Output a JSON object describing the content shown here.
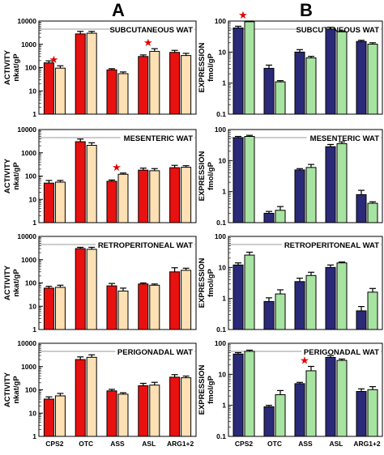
{
  "figure": {
    "letters": [
      "A",
      "B"
    ]
  },
  "chart_data": [
    {
      "type": "bar",
      "panel": "A",
      "title": "SUBCUTANEOUS WAT",
      "ylabel": [
        "ACTIVITY",
        "nkat/gP"
      ],
      "yscale": "log",
      "ylim": [
        1,
        10000
      ],
      "yticks": [
        "1",
        "10",
        "100",
        "1000",
        "10000"
      ],
      "categories": [
        "CPS2",
        "OTC",
        "ASS",
        "ASL",
        "ARG1+2"
      ],
      "series": [
        {
          "color": "#e8110f",
          "values": [
            160,
            2800,
            80,
            300,
            450
          ],
          "errors": [
            35,
            800,
            10,
            50,
            100
          ]
        },
        {
          "color": "#fde0b3",
          "values": [
            95,
            3000,
            55,
            500,
            330
          ],
          "errors": [
            25,
            600,
            10,
            150,
            80
          ]
        }
      ],
      "stars": [
        [
          0,
          1
        ],
        [
          3,
          1
        ]
      ]
    },
    {
      "type": "bar",
      "panel": "B",
      "title": "SUBCUTANEOUS WAT",
      "ylabel": [
        "EXPRESSION",
        "fmol/gP"
      ],
      "yscale": "log",
      "ylim": [
        0.1,
        100
      ],
      "yticks": [
        "0.1",
        "1",
        "10",
        "100"
      ],
      "categories": [
        "CPS2",
        "OTC",
        "ASS",
        "ASL",
        "ARG1+2"
      ],
      "series": [
        {
          "color": "#2b2a78",
          "values": [
            60,
            3,
            10,
            55,
            22
          ],
          "errors": [
            8,
            0.8,
            2,
            8,
            2
          ]
        },
        {
          "color": "#a7e3a1",
          "values": [
            95,
            1.1,
            6.5,
            45,
            18
          ],
          "errors": [
            5,
            0.1,
            0.8,
            3,
            2
          ]
        }
      ],
      "stars": [
        [
          0,
          1
        ]
      ]
    },
    {
      "type": "bar",
      "panel": "A",
      "title": "MESENTERIC WAT",
      "ylabel": [
        "ACTIVITY",
        "nkat/gP"
      ],
      "yscale": "log",
      "ylim": [
        1,
        10000
      ],
      "yticks": [
        "1",
        "10",
        "100",
        "1000",
        "10000"
      ],
      "categories": [
        "CPS2",
        "OTC",
        "ASS",
        "ASL",
        "ARG1+2"
      ],
      "series": [
        {
          "color": "#e8110f",
          "values": [
            50,
            3000,
            60,
            180,
            230
          ],
          "errors": [
            15,
            900,
            8,
            40,
            60
          ]
        },
        {
          "color": "#fde0b3",
          "values": [
            55,
            2100,
            120,
            170,
            240
          ],
          "errors": [
            10,
            600,
            15,
            40,
            40
          ]
        }
      ],
      "stars": [
        [
          2,
          1
        ]
      ]
    },
    {
      "type": "bar",
      "panel": "B",
      "title": "MESENTERIC WAT",
      "ylabel": [
        "EXPRESSION",
        "fmol/gP"
      ],
      "yscale": "log",
      "ylim": [
        0.1,
        100
      ],
      "yticks": [
        "0.1",
        "1",
        "10",
        "100"
      ],
      "categories": [
        "CPS2",
        "OTC",
        "ASS",
        "ASL",
        "ARG1+2"
      ],
      "series": [
        {
          "color": "#2b2a78",
          "values": [
            55,
            0.2,
            5,
            28,
            0.8
          ],
          "errors": [
            5,
            0.03,
            0.5,
            5,
            0.3
          ]
        },
        {
          "color": "#a7e3a1",
          "values": [
            60,
            0.25,
            6,
            35,
            0.42
          ],
          "errors": [
            5,
            0.08,
            1.5,
            5,
            0.05
          ]
        }
      ],
      "stars": []
    },
    {
      "type": "bar",
      "panel": "A",
      "title": "RETROPERITONEAL WAT",
      "ylabel": [
        "ACTIVITY",
        "nkat/gP"
      ],
      "yscale": "log",
      "ylim": [
        1,
        10000
      ],
      "yticks": [
        "1",
        "10",
        "100",
        "1000",
        "10000"
      ],
      "categories": [
        "CPS2",
        "OTC",
        "ASS",
        "ASL",
        "ARG1+2"
      ],
      "series": [
        {
          "color": "#e8110f",
          "values": [
            60,
            3000,
            75,
            90,
            300
          ],
          "errors": [
            12,
            400,
            20,
            10,
            150
          ]
        },
        {
          "color": "#fde0b3",
          "values": [
            65,
            2800,
            45,
            80,
            350
          ],
          "errors": [
            15,
            600,
            15,
            10,
            80
          ]
        }
      ],
      "stars": []
    },
    {
      "type": "bar",
      "panel": "B",
      "title": "RETROPERITONEAL WAT",
      "ylabel": [
        "EXPRESSION",
        "fmol/gP"
      ],
      "yscale": "log",
      "ylim": [
        0.1,
        100
      ],
      "yticks": [
        "0.1",
        "1",
        "10",
        "100"
      ],
      "categories": [
        "CPS2",
        "OTC",
        "ASS",
        "ASL",
        "ARG1+2"
      ],
      "series": [
        {
          "color": "#2b2a78",
          "values": [
            12,
            0.8,
            3.5,
            10,
            0.4
          ],
          "errors": [
            2,
            0.25,
            1,
            2,
            0.15
          ]
        },
        {
          "color": "#a7e3a1",
          "values": [
            25,
            1.4,
            5.5,
            14,
            1.6
          ],
          "errors": [
            6,
            0.5,
            1.5,
            1,
            0.5
          ]
        }
      ],
      "stars": []
    },
    {
      "type": "bar",
      "panel": "A",
      "title": "PERIGONADAL WAT",
      "ylabel": [
        "ACTIVITY",
        "nkat/gP"
      ],
      "yscale": "log",
      "ylim": [
        1,
        10000
      ],
      "yticks": [
        "1",
        "10",
        "100",
        "1000",
        "10000"
      ],
      "categories": [
        "CPS2",
        "OTC",
        "ASS",
        "ASL",
        "ARG1+2"
      ],
      "series": [
        {
          "color": "#e8110f",
          "values": [
            40,
            2000,
            90,
            150,
            350
          ],
          "errors": [
            10,
            600,
            15,
            40,
            100
          ]
        },
        {
          "color": "#fde0b3",
          "values": [
            55,
            2500,
            65,
            160,
            330
          ],
          "errors": [
            15,
            700,
            10,
            50,
            60
          ]
        }
      ],
      "stars": []
    },
    {
      "type": "bar",
      "panel": "B",
      "title": "PERIGONADAL WAT",
      "ylabel": [
        "EXPRESSION",
        "fmol/gP"
      ],
      "yscale": "log",
      "ylim": [
        0.1,
        100
      ],
      "yticks": [
        "0.1",
        "1",
        "10",
        "100"
      ],
      "categories": [
        "CPS2",
        "OTC",
        "ASS",
        "ASL",
        "ARG1+2"
      ],
      "series": [
        {
          "color": "#2b2a78",
          "values": [
            45,
            0.9,
            5,
            35,
            2.8
          ],
          "errors": [
            5,
            0.1,
            0.5,
            5,
            0.6
          ]
        },
        {
          "color": "#a7e3a1",
          "values": [
            55,
            2.2,
            13,
            28,
            3.2
          ],
          "errors": [
            5,
            0.8,
            5,
            3,
            0.8
          ]
        }
      ],
      "stars": [
        [
          2,
          1
        ]
      ]
    }
  ]
}
